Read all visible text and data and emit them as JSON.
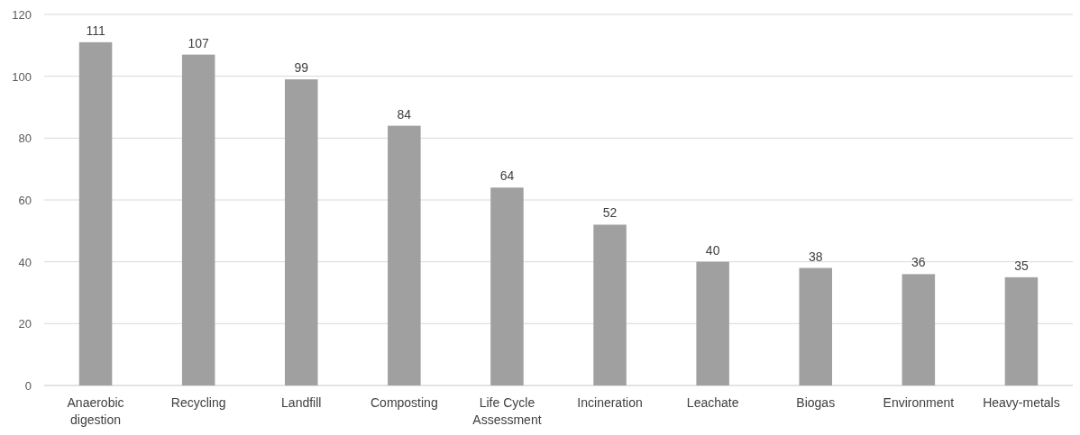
{
  "chart_data": {
    "type": "bar",
    "categories": [
      "Anaerobic digestion",
      "Recycling",
      "Landfill",
      "Composting",
      "Life Cycle Assessment",
      "Incineration",
      "Leachate",
      "Biogas",
      "Environment",
      "Heavy-metals"
    ],
    "values": [
      111,
      107,
      99,
      84,
      64,
      52,
      40,
      38,
      36,
      35
    ],
    "color": "#a0a0a0",
    "ylim": [
      0,
      120
    ],
    "yticks": [
      0,
      20,
      40,
      60,
      80,
      100,
      120
    ],
    "grid": "y",
    "data_labels": true
  }
}
